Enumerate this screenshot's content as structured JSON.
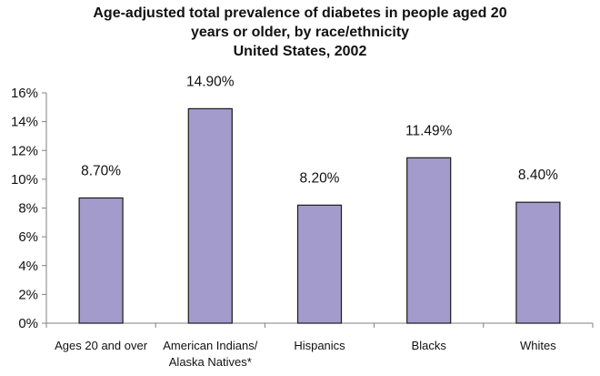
{
  "chart_data": {
    "type": "bar",
    "title_lines": [
      "Age-adjusted total prevalence of diabetes in people aged 20",
      "years or older, by race/ethnicity",
      "United States, 2002"
    ],
    "categories": [
      [
        "Ages 20 and over"
      ],
      [
        "American Indians/",
        "Alaska Natives*"
      ],
      [
        "Hispanics"
      ],
      [
        "Blacks"
      ],
      [
        "Whites"
      ]
    ],
    "values": [
      8.7,
      14.9,
      8.2,
      11.49,
      8.4
    ],
    "data_labels": [
      "8.70%",
      "14.90%",
      "8.20%",
      "11.49%",
      "8.40%"
    ],
    "ylim": [
      0,
      16
    ],
    "yticks": [
      0,
      2,
      4,
      6,
      8,
      10,
      12,
      14,
      16
    ],
    "ytick_labels": [
      "0%",
      "2%",
      "4%",
      "6%",
      "8%",
      "10%",
      "12%",
      "14%",
      "16%"
    ],
    "xlabel": "",
    "ylabel": "",
    "grid": false,
    "bar_color": "#a29bcc",
    "bar_edge_color": "#1a1a1a",
    "axis_color": "#808080"
  }
}
